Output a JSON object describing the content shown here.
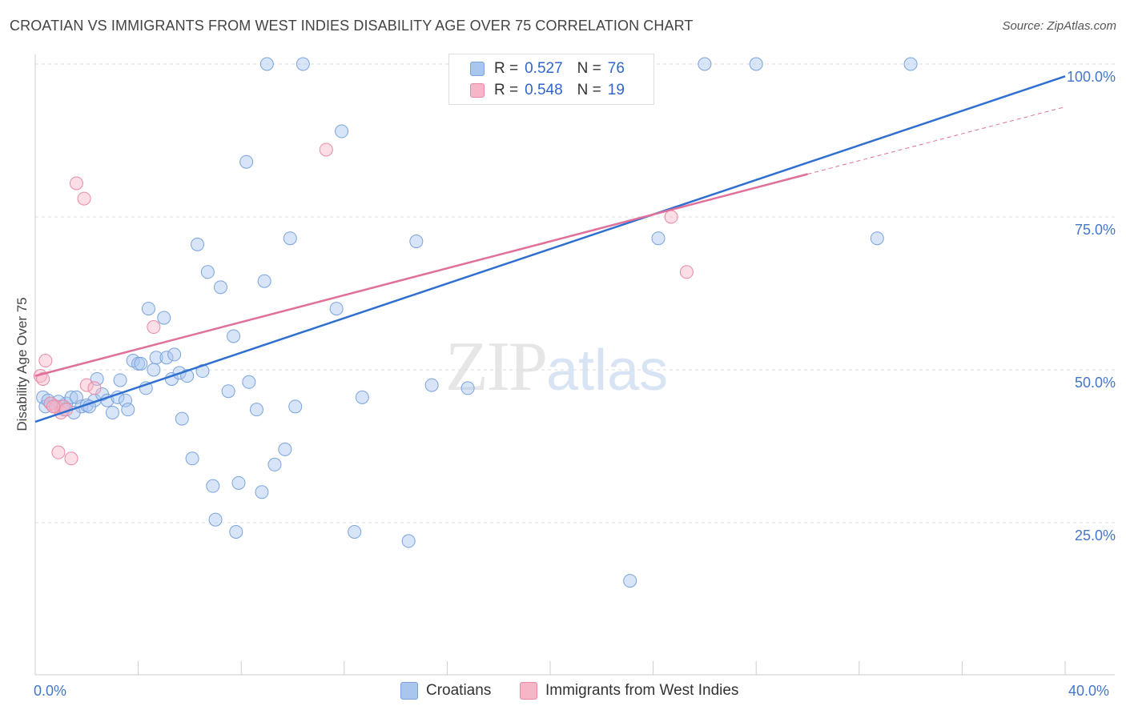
{
  "title": "CROATIAN VS IMMIGRANTS FROM WEST INDIES DISABILITY AGE OVER 75 CORRELATION CHART",
  "source": "Source: ZipAtlas.com",
  "watermark": {
    "zip": "ZIP",
    "atlas": "atlas"
  },
  "colors": {
    "croatians_fill": "#a9c6ef",
    "croatians_stroke": "#7aa3dd",
    "croatians_line": "#2f6fd0",
    "wi_fill": "#f6b6c8",
    "wi_stroke": "#e88aa6",
    "wi_line": "#e0709a",
    "grid": "#dddddd",
    "tick_text": "#4477cc"
  },
  "legend_top": {
    "rows": [
      {
        "r_label": "R =",
        "r_value": "0.527",
        "n_label": "N =",
        "n_value": "76",
        "swatch": "croatians"
      },
      {
        "r_label": "R =",
        "r_value": "0.548",
        "n_label": "N =",
        "n_value": "19",
        "swatch": "wi"
      }
    ]
  },
  "legend_bottom": [
    {
      "label": "Croatians",
      "swatch": "croatians"
    },
    {
      "label": "Immigrants from West Indies",
      "swatch": "wi"
    }
  ],
  "chart_data": {
    "type": "scatter",
    "title": "CROATIAN VS IMMIGRANTS FROM WEST INDIES DISABILITY AGE OVER 75 CORRELATION CHART",
    "xlabel": "",
    "ylabel": "Disability Age Over 75",
    "xlim": [
      0,
      40
    ],
    "ylim": [
      0,
      105
    ],
    "x_tick_labels": [
      "0.0%",
      "40.0%"
    ],
    "y_ticks": [
      25,
      50,
      75,
      100
    ],
    "y_tick_labels": [
      "25.0%",
      "50.0%",
      "75.0%",
      "100.0%"
    ],
    "grid": true,
    "series": [
      {
        "name": "Croatians",
        "color": "#a9c6ef",
        "points": [
          [
            0.3,
            45.5
          ],
          [
            0.4,
            44.0
          ],
          [
            0.6,
            44.5
          ],
          [
            0.8,
            44.0
          ],
          [
            1.0,
            44.0
          ],
          [
            1.2,
            44.5
          ],
          [
            1.4,
            45.5
          ],
          [
            1.6,
            45.5
          ],
          [
            1.8,
            44.0
          ],
          [
            2.0,
            44.2
          ],
          [
            2.3,
            45.0
          ],
          [
            2.4,
            48.5
          ],
          [
            2.6,
            46.0
          ],
          [
            2.8,
            45.0
          ],
          [
            3.0,
            43.0
          ],
          [
            3.2,
            45.5
          ],
          [
            3.3,
            48.3
          ],
          [
            3.5,
            45.0
          ],
          [
            3.6,
            43.5
          ],
          [
            3.8,
            51.5
          ],
          [
            4.0,
            51.0
          ],
          [
            4.1,
            51.0
          ],
          [
            4.3,
            47.0
          ],
          [
            4.4,
            60.0
          ],
          [
            4.6,
            50.0
          ],
          [
            4.7,
            52.0
          ],
          [
            5.0,
            58.5
          ],
          [
            5.1,
            52.0
          ],
          [
            5.3,
            48.5
          ],
          [
            5.4,
            52.5
          ],
          [
            5.6,
            49.5
          ],
          [
            5.7,
            42.0
          ],
          [
            5.9,
            49.0
          ],
          [
            6.1,
            35.5
          ],
          [
            6.3,
            70.5
          ],
          [
            6.5,
            49.8
          ],
          [
            6.7,
            66.0
          ],
          [
            6.9,
            31.0
          ],
          [
            7.0,
            25.5
          ],
          [
            7.2,
            63.5
          ],
          [
            7.5,
            46.5
          ],
          [
            7.7,
            55.5
          ],
          [
            7.8,
            23.5
          ],
          [
            7.9,
            31.5
          ],
          [
            8.3,
            48.0
          ],
          [
            8.2,
            84.0
          ],
          [
            8.6,
            43.5
          ],
          [
            8.8,
            30.0
          ],
          [
            8.9,
            64.5
          ],
          [
            9.0,
            100.0
          ],
          [
            9.3,
            34.5
          ],
          [
            9.7,
            37.0
          ],
          [
            9.9,
            71.5
          ],
          [
            10.1,
            44.0
          ],
          [
            10.4,
            100.0
          ],
          [
            11.7,
            60.0
          ],
          [
            11.9,
            89.0
          ],
          [
            12.4,
            23.5
          ],
          [
            12.7,
            45.5
          ],
          [
            14.5,
            22.0
          ],
          [
            14.8,
            71.0
          ],
          [
            15.4,
            47.5
          ],
          [
            16.8,
            47.0
          ],
          [
            22.3,
            100.0
          ],
          [
            22.4,
            95.0
          ],
          [
            23.1,
            15.5
          ],
          [
            24.2,
            71.5
          ],
          [
            26.0,
            100.0
          ],
          [
            28.0,
            100.0
          ],
          [
            32.7,
            71.5
          ],
          [
            34.0,
            100.0
          ],
          [
            1.5,
            43.0
          ],
          [
            2.1,
            44.0
          ],
          [
            1.1,
            43.5
          ],
          [
            0.5,
            45.0
          ],
          [
            0.9,
            44.8
          ]
        ]
      },
      {
        "name": "Immigrants from West Indies",
        "color": "#f6b6c8",
        "points": [
          [
            0.2,
            49.0
          ],
          [
            0.3,
            48.5
          ],
          [
            0.4,
            51.5
          ],
          [
            0.6,
            44.5
          ],
          [
            0.8,
            44.0
          ],
          [
            1.0,
            43.0
          ],
          [
            1.1,
            44.0
          ],
          [
            1.2,
            43.5
          ],
          [
            0.9,
            36.5
          ],
          [
            1.4,
            35.5
          ],
          [
            1.6,
            80.5
          ],
          [
            1.9,
            78.0
          ],
          [
            2.0,
            47.5
          ],
          [
            2.3,
            47.0
          ],
          [
            4.6,
            57.0
          ],
          [
            11.3,
            86.0
          ],
          [
            24.7,
            75.0
          ],
          [
            25.3,
            66.0
          ],
          [
            0.7,
            44.0
          ]
        ]
      }
    ],
    "trendlines": [
      {
        "series": "Croatians",
        "from": [
          0,
          41.5
        ],
        "to": [
          40,
          98.0
        ],
        "style": "solid"
      },
      {
        "series": "Immigrants from West Indies",
        "from": [
          0,
          49.0
        ],
        "to": [
          30,
          82.0
        ],
        "style": "solid"
      },
      {
        "series": "Immigrants from West Indies",
        "from": [
          30,
          82.0
        ],
        "to": [
          40,
          93.0
        ],
        "style": "dashed"
      }
    ]
  }
}
